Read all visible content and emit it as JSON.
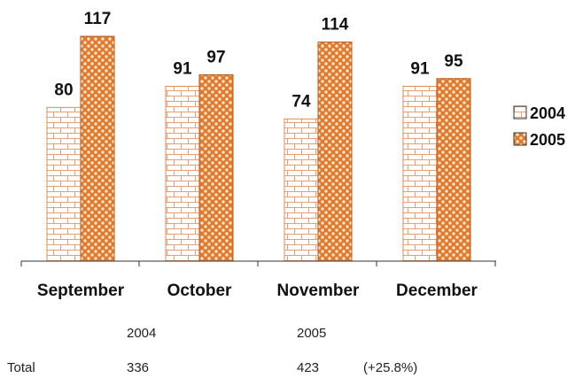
{
  "chart_data": {
    "type": "bar",
    "categories": [
      "September",
      "October",
      "November",
      "December"
    ],
    "series": [
      {
        "name": "2004",
        "values": [
          80,
          91,
          74,
          91
        ],
        "color": "#e8823a",
        "pattern": "brick"
      },
      {
        "name": "2005",
        "values": [
          117,
          97,
          114,
          95
        ],
        "color": "#e8823a",
        "pattern": "lattice"
      }
    ],
    "ylim": [
      0,
      125
    ],
    "grid": false,
    "legend": "right",
    "show_data_labels": true
  },
  "summary": {
    "header_2004": "2004",
    "header_2005": "2005",
    "row_label": "Total",
    "total_2004": "336",
    "total_2005": "423",
    "change": "(+25.8%)"
  }
}
